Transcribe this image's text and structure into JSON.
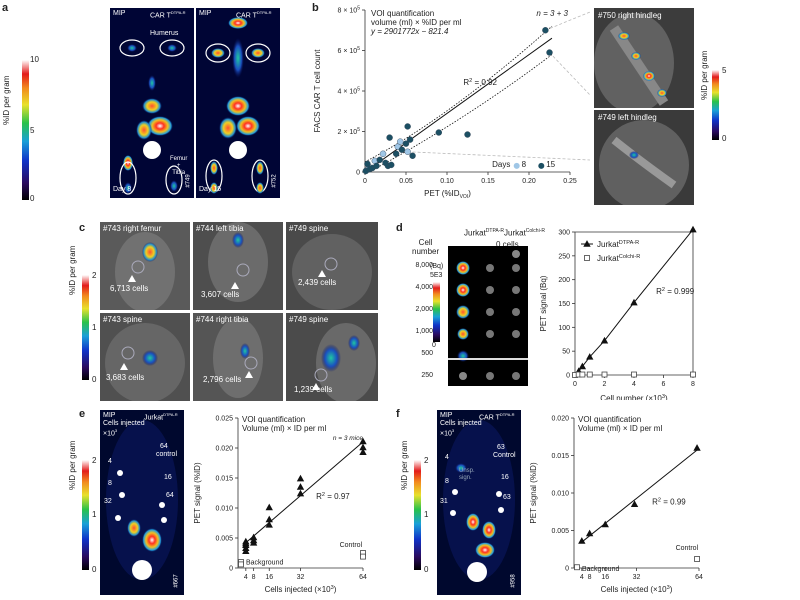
{
  "panel_letters": {
    "a": "a",
    "b": "b",
    "c": "c",
    "d": "d",
    "e": "e",
    "f": "f"
  },
  "colorbar": {
    "title": "%ID per gram",
    "ticks_a": [
      "10",
      "5",
      "0"
    ],
    "ticks_c": [
      "2",
      "1",
      "0"
    ],
    "ticks_e": [
      "2",
      "1",
      "0"
    ],
    "ticks_f": [
      "2",
      "1",
      "0"
    ],
    "ticks_b": [
      "5",
      "0"
    ],
    "title_f": "%ID per gram"
  },
  "panel_a": {
    "mip": "MIP",
    "car": "CAR T",
    "car_sup": "DTPA-R",
    "humerus": "Humerus",
    "femur": "Femur\n+\nTibia",
    "femur_1": "Femur",
    "femur_2": "+",
    "femur_3": "Tibia",
    "day8": "Day 8",
    "day15": "Day 15",
    "id1": "#749",
    "id2": "#752"
  },
  "panel_b_side": {
    "top": "#750 right hindleg",
    "bottom": "#749 left hindleg"
  },
  "panel_c": {
    "labels": [
      "#743 right femur",
      "#744 left tibia",
      "#749 spine",
      "#743 spine",
      "#744 right tibia",
      "#749 spine"
    ],
    "cells": [
      "6,713 cells",
      "3,607 cells",
      "2,439 cells",
      "3,683 cells",
      "2,796 cells",
      "1,239 cells"
    ]
  },
  "panel_d_image": {
    "cell_number_title": "Cell\nnumber",
    "cell_number_1": "Cell",
    "cell_number_2": "number",
    "cell_numbers": [
      "8,000",
      "4,000",
      "2,000",
      "1,000",
      "500",
      "250"
    ],
    "col1": "Jurkat",
    "col1_sup": "DTPA-R",
    "col2": "Jurkat",
    "col2_sup": "Colchi-R",
    "zero": "0 cells",
    "cb_title": "(Bq)",
    "cb_top": "5E3",
    "cb_bottom": "0"
  },
  "panel_e_image": {
    "mip": "MIP",
    "jurkat": "Jurkat",
    "jurkat_sup": "DTPA-R",
    "cells_injected": "Cells injected",
    "x10": "×10",
    "x10_sup": "3",
    "labels": [
      "4",
      "8",
      "32",
      "64",
      "control",
      "16",
      "64"
    ],
    "id": "#667"
  },
  "panel_f_image": {
    "mip": "MIP",
    "car": "CAR T",
    "car_sup": "DTPA-R",
    "cells_injected": "Cells injected",
    "x10": "×10",
    "x10_sup": "3",
    "labels": [
      "4",
      "8",
      "31",
      "63",
      "Control",
      "16",
      "63"
    ],
    "unsp": "Unsp.\nsign.",
    "unsp_1": "Unsp.",
    "unsp_2": "sign.",
    "id": "#958"
  },
  "chart_data": [
    {
      "id": "b",
      "type": "scatter",
      "title": "VOI quantification",
      "subtitle": "volume (ml) × %ID per ml",
      "equation": "y = 2901772x − 821.4",
      "r2": "R² = 0.92",
      "r2_label": "R",
      "r2_value": " = 0.92",
      "n_label": "n = 3 + 3",
      "xlabel": "PET (%ID",
      "xlabel_sub": "VOI",
      "xlabel_end": ")",
      "ylabel": "FACS CAR T cell count",
      "xlim": [
        0,
        0.25
      ],
      "ylim": [
        0,
        800000
      ],
      "xticks": [
        "0",
        "0.05",
        "0.10",
        "0.15",
        "0.20",
        "0.25"
      ],
      "xtick_values": [
        0,
        0.05,
        0.1,
        0.15,
        0.2,
        0.25
      ],
      "yticks": [
        "0",
        "2 × 10",
        "4 × 10",
        "6 × 10",
        "8 × 10"
      ],
      "ytick_exp": "5",
      "ytick_values": [
        0,
        200000,
        400000,
        600000,
        800000
      ],
      "legend": {
        "label": "Days",
        "day8": "8",
        "day15": "15"
      },
      "series": [
        {
          "name": "8",
          "color": "#9fc6e6",
          "points": [
            [
              0.002,
              8000
            ],
            [
              0.005,
              25000
            ],
            [
              0.012,
              55000
            ],
            [
              0.022,
              90000
            ],
            [
              0.04,
              125000
            ],
            [
              0.043,
              150000
            ],
            [
              0.052,
              100000
            ]
          ]
        },
        {
          "name": "15",
          "color": "#1c4f63",
          "points": [
            [
              0.001,
              5000
            ],
            [
              0.003,
              40000
            ],
            [
              0.006,
              15000
            ],
            [
              0.009,
              20000
            ],
            [
              0.014,
              30000
            ],
            [
              0.018,
              60000
            ],
            [
              0.025,
              45000
            ],
            [
              0.028,
              30000
            ],
            [
              0.03,
              170000
            ],
            [
              0.032,
              35000
            ],
            [
              0.038,
              90000
            ],
            [
              0.045,
              110000
            ],
            [
              0.05,
              140000
            ],
            [
              0.055,
              160000
            ],
            [
              0.058,
              80000
            ],
            [
              0.052,
              225000
            ],
            [
              0.09,
              195000
            ],
            [
              0.125,
              185000
            ],
            [
              0.22,
              700000
            ],
            [
              0.225,
              590000
            ]
          ]
        }
      ],
      "fit": {
        "slope": 2901772,
        "intercept": -821.4
      }
    },
    {
      "id": "d",
      "type": "line",
      "title": "",
      "xlabel": "Cell number (×10",
      "xlabel_sup": "3",
      "xlabel_end": ")",
      "ylabel": "PET signal (Bq)",
      "xlim": [
        0,
        8
      ],
      "ylim": [
        0,
        300
      ],
      "xticks": [
        "0",
        "2",
        "4",
        "6",
        "8"
      ],
      "xtick_values": [
        0,
        2,
        4,
        6,
        8
      ],
      "yticks": [
        "0",
        "50",
        "100",
        "150",
        "200",
        "250",
        "300"
      ],
      "ytick_values": [
        0,
        50,
        100,
        150,
        200,
        250,
        300
      ],
      "r2_label": "R",
      "r2_value": " = 0.999",
      "series": [
        {
          "name": "Jurkat",
          "name_sup": "DTPA-R",
          "marker": "triangle",
          "x": [
            0.25,
            0.5,
            1,
            2,
            4,
            8
          ],
          "y": [
            8,
            18,
            38,
            72,
            152,
            305
          ]
        },
        {
          "name": "Jurkat",
          "name_sup": "Colchi-R",
          "marker": "square",
          "x": [
            0,
            0.25,
            0.5,
            1,
            2,
            4,
            8
          ],
          "y": [
            0,
            1,
            1,
            1,
            1,
            1,
            1
          ]
        }
      ]
    },
    {
      "id": "e",
      "type": "scatter",
      "title": "VOI quantification",
      "subtitle": "Volume (ml) × ID per ml",
      "n_label": "n = 3 mice",
      "r2_label": "R",
      "r2_value": " = 0.97",
      "xlabel": "Cells injected (×10",
      "xlabel_sup": "3",
      "xlabel_end": ")",
      "ylabel": "PET signal (%ID)",
      "xlim": [
        0,
        64
      ],
      "ylim": [
        0,
        0.025
      ],
      "xticks": [
        "4",
        "8",
        "16",
        "32",
        "64"
      ],
      "xtick_values": [
        4,
        8,
        16,
        32,
        64
      ],
      "yticks": [
        "0",
        "0.005",
        "0.010",
        "0.015",
        "0.020",
        "0.025"
      ],
      "ytick_values": [
        0,
        0.005,
        0.01,
        0.015,
        0.02,
        0.025
      ],
      "background_label": "Background",
      "control_label": "Control",
      "series": [
        {
          "name": "",
          "marker": "triangle",
          "points": [
            [
              4,
              0.0033
            ],
            [
              4,
              0.0038
            ],
            [
              4,
              0.0028
            ],
            [
              4,
              0.0044
            ],
            [
              4,
              0.0041
            ],
            [
              8,
              0.0042
            ],
            [
              8,
              0.0046
            ],
            [
              8,
              0.0051
            ],
            [
              16,
              0.0072
            ],
            [
              16,
              0.0081
            ],
            [
              16,
              0.0101
            ],
            [
              32,
              0.0124
            ],
            [
              32,
              0.0135
            ],
            [
              32,
              0.0149
            ],
            [
              64,
              0.0193
            ],
            [
              64,
              0.0201
            ],
            [
              64,
              0.0211
            ]
          ]
        }
      ],
      "background_points": [
        [
          0,
          0.001
        ],
        [
          0,
          0.0006
        ]
      ],
      "control_points": [
        [
          64,
          0.0025
        ],
        [
          64,
          0.0019
        ]
      ]
    },
    {
      "id": "f",
      "type": "scatter",
      "title": "VOI quantification",
      "subtitle": "Volume (ml) × ID per ml",
      "r2_label": "R",
      "r2_value": " = 0.99",
      "xlabel": "Cells injected (×10",
      "xlabel_sup": "3",
      "xlabel_end": ")",
      "ylabel": "PET signal (%ID)",
      "xlim": [
        0,
        64
      ],
      "ylim": [
        0,
        0.02
      ],
      "xticks": [
        "4",
        "8",
        "16",
        "32",
        "64"
      ],
      "xtick_values": [
        4,
        8,
        16,
        32,
        64
      ],
      "yticks": [
        "0",
        "0.005",
        "0.010",
        "0.015",
        "0.020"
      ],
      "ytick_values": [
        0,
        0.005,
        0.01,
        0.015,
        0.02
      ],
      "background_label": "Background",
      "control_label": "Control",
      "series": [
        {
          "name": "",
          "marker": "triangle",
          "points": [
            [
              4,
              0.0036
            ],
            [
              8,
              0.0046
            ],
            [
              16,
              0.0058
            ],
            [
              31,
              0.0085
            ],
            [
              63,
              0.016
            ]
          ]
        }
      ],
      "background_points": [
        [
          0,
          0.0001
        ]
      ],
      "control_points": [
        [
          63,
          0.0012
        ]
      ]
    }
  ]
}
